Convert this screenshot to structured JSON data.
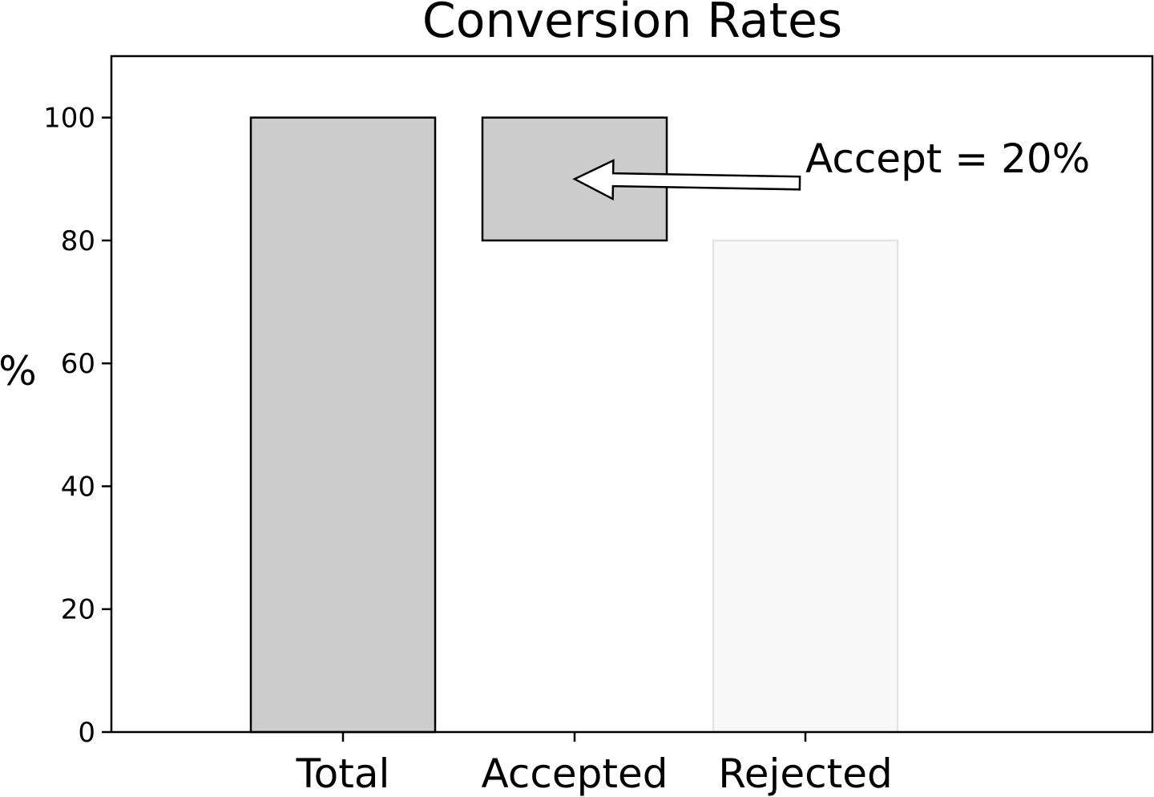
{
  "chart_data": {
    "type": "bar",
    "title": "Conversion Rates",
    "xlabel": "",
    "ylabel": "%",
    "ylim": [
      0,
      110
    ],
    "yticks": [
      "0",
      "20",
      "40",
      "60",
      "80",
      "100"
    ],
    "categories": [
      "Total",
      "Accepted",
      "Rejected"
    ],
    "bars": [
      {
        "category": "Total",
        "bottom": 0,
        "top": 100,
        "fill": "#cccccc",
        "stroke": "#000000"
      },
      {
        "category": "Accepted",
        "bottom": 80,
        "top": 100,
        "fill": "#cccccc",
        "stroke": "#000000"
      },
      {
        "category": "Rejected",
        "bottom": 0,
        "top": 80,
        "fill": "#f8f8f8",
        "stroke": "#e4e4e4"
      }
    ],
    "annotation": {
      "text": "Accept = 20%",
      "points_to_category": "Accepted",
      "points_to_value": 90
    },
    "grid": false,
    "legend": "none"
  }
}
